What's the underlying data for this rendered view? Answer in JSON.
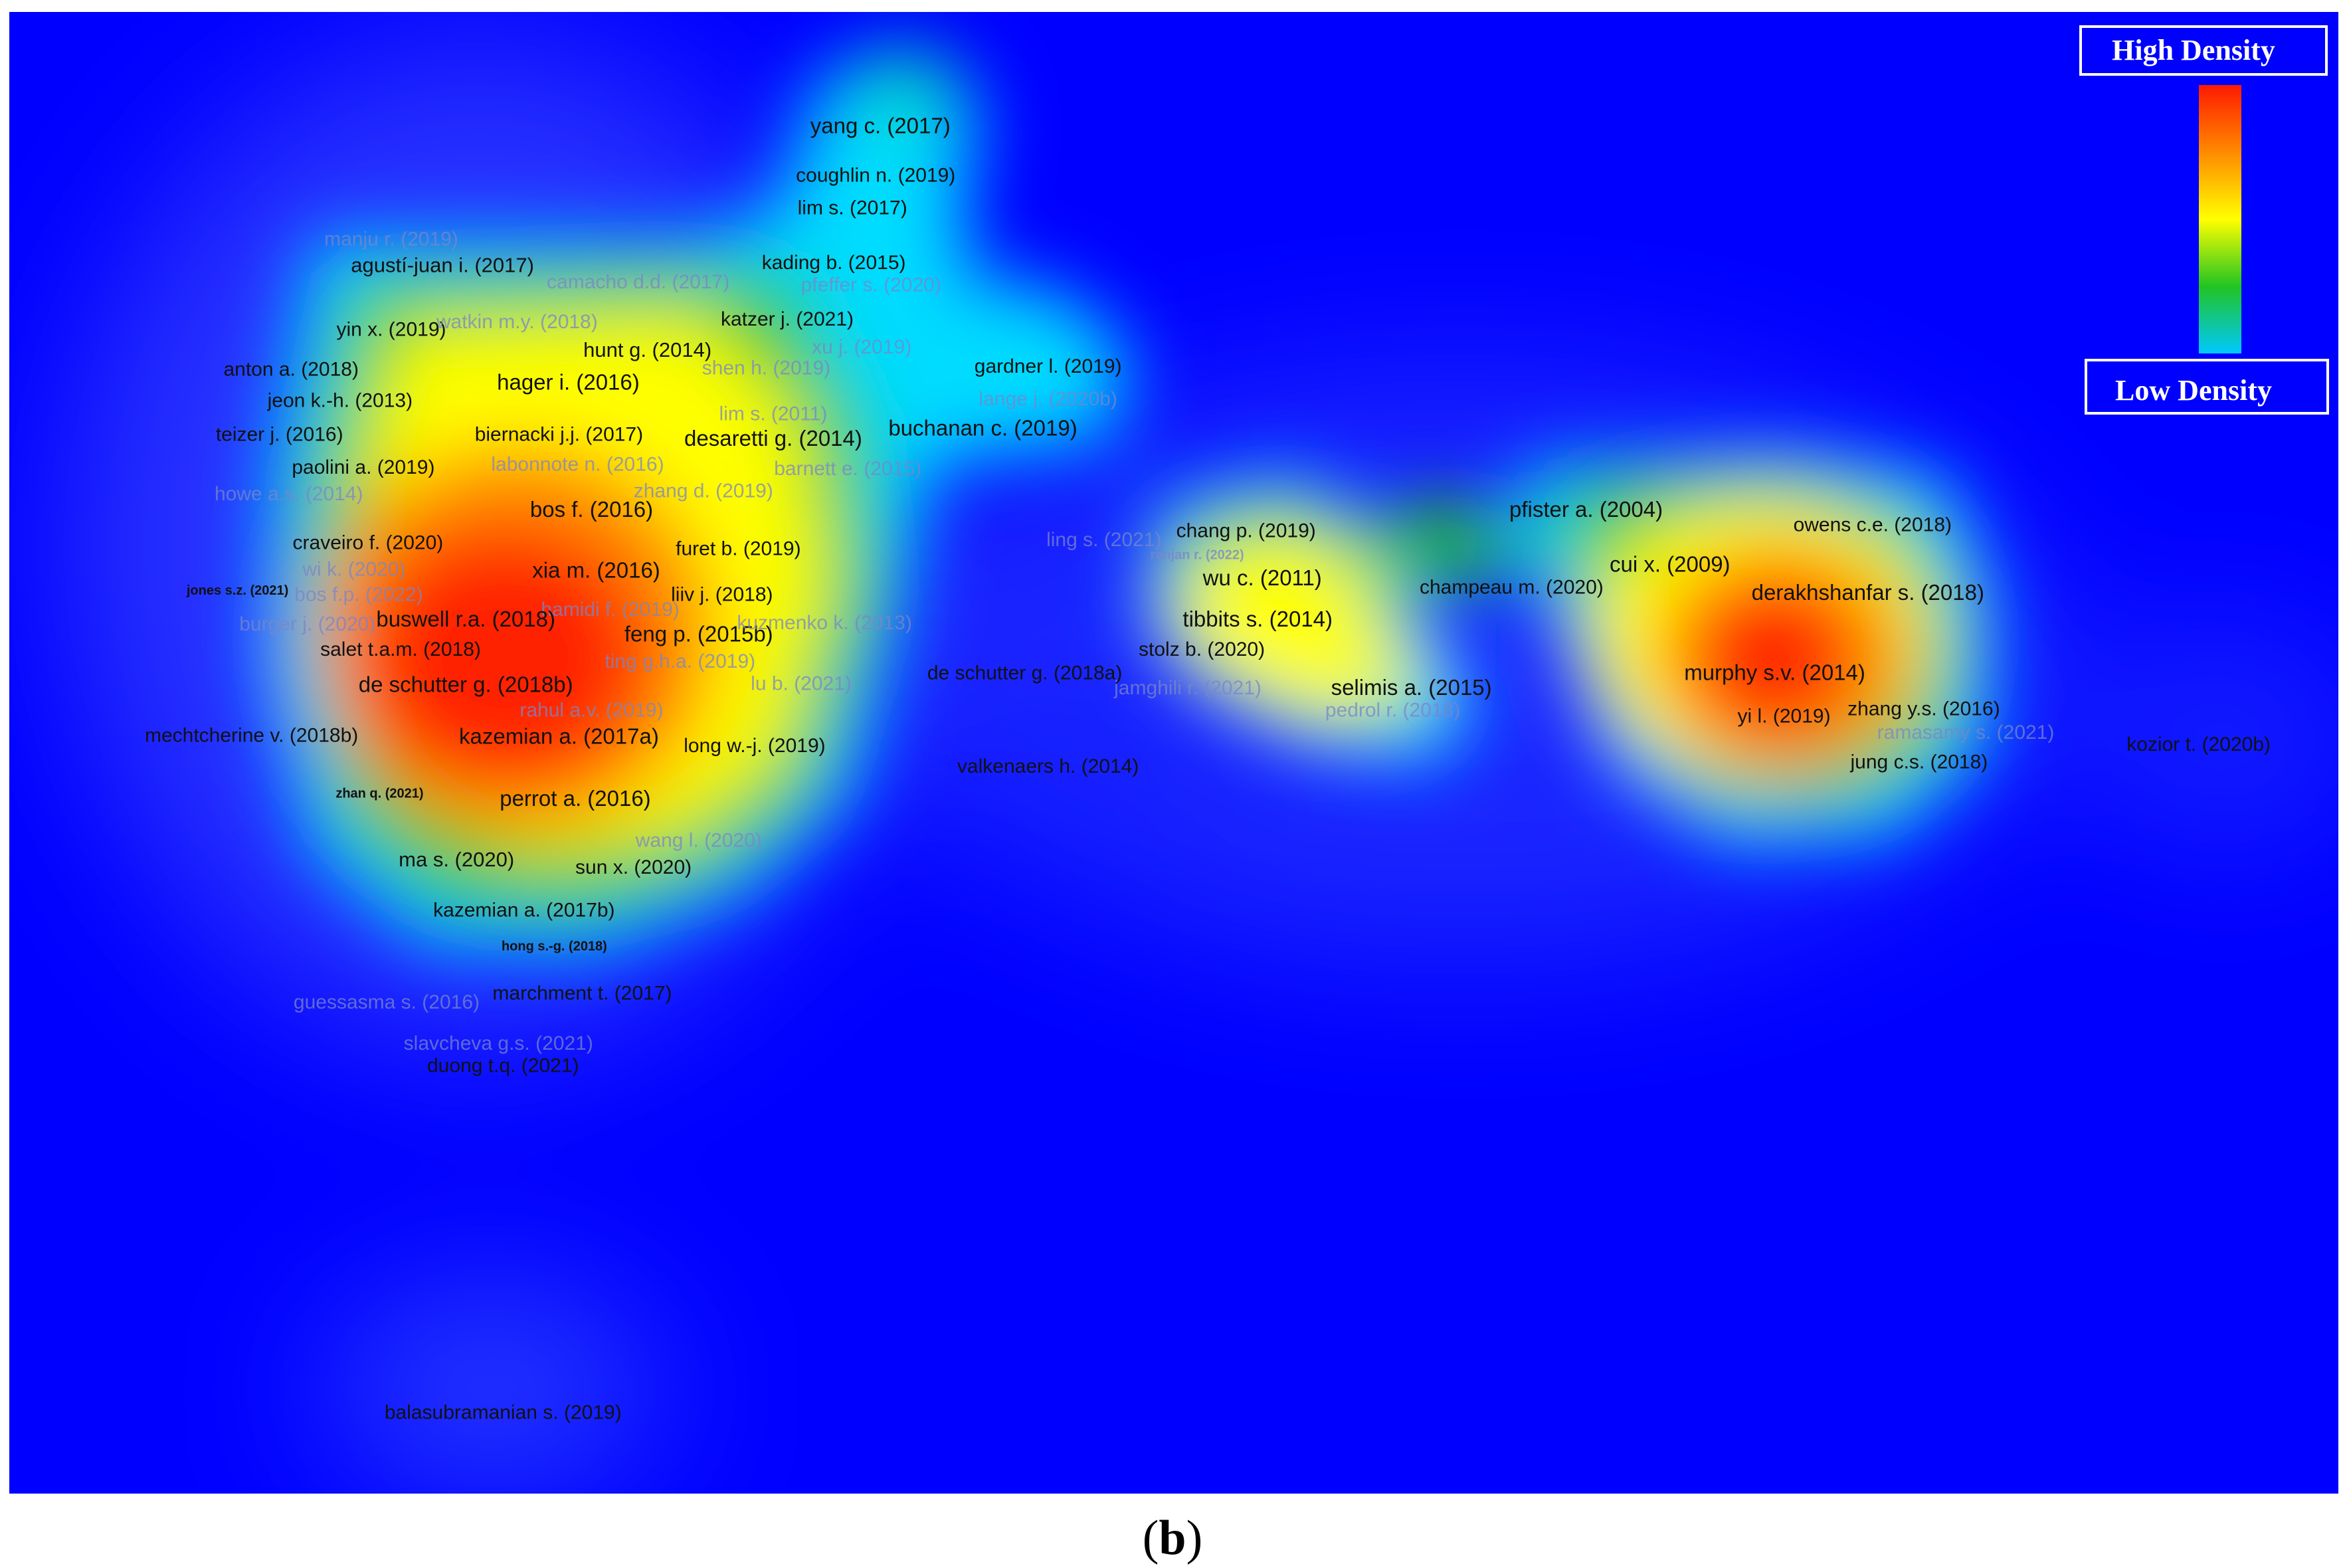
{
  "caption": {
    "open": "(",
    "letter": "b",
    "close": ")"
  },
  "legend": {
    "high_label": "High Density",
    "low_label": "Low Density",
    "colors": [
      "#ff1a00",
      "#ff8a00",
      "#ffff00",
      "#22c422",
      "#00c8ff"
    ]
  },
  "colors": {
    "background": "#0000ff",
    "label_dark": "#111111",
    "label_faint": "#7a86c8"
  },
  "chart_data": {
    "type": "heatmap",
    "title": "",
    "xlabel": "",
    "ylabel": "",
    "xlim": [
      0,
      1000
    ],
    "ylim": [
      0,
      1000
    ],
    "items": [
      {
        "label": "yang c. (2017)",
        "x": 374,
        "y": 78,
        "w": 0.5,
        "faint": false,
        "size": 1.0
      },
      {
        "label": "coughlin n. (2019)",
        "x": 372,
        "y": 111,
        "w": 0.55,
        "faint": false,
        "size": 0.9
      },
      {
        "label": "lim s. (2017)",
        "x": 362,
        "y": 133,
        "w": 0.55,
        "faint": false,
        "size": 0.9
      },
      {
        "label": "manju r. (2019)",
        "x": 164,
        "y": 154,
        "w": 0.25,
        "faint": true,
        "size": 0.9
      },
      {
        "label": "agustí-juan i. (2017)",
        "x": 186,
        "y": 172,
        "w": 0.55,
        "faint": false,
        "size": 0.95
      },
      {
        "label": "camacho d.d. (2017)",
        "x": 270,
        "y": 183,
        "w": 0.6,
        "faint": true,
        "size": 0.9
      },
      {
        "label": "pfeffer s. (2020)",
        "x": 370,
        "y": 185,
        "w": 0.5,
        "faint": true,
        "size": 0.9
      },
      {
        "label": "kading b. (2015)",
        "x": 354,
        "y": 170,
        "w": 0.55,
        "faint": false,
        "size": 0.9
      },
      {
        "label": "katzer j. (2021)",
        "x": 334,
        "y": 208,
        "w": 0.6,
        "faint": false,
        "size": 0.9
      },
      {
        "label": "yin x. (2019)",
        "x": 164,
        "y": 215,
        "w": 0.55,
        "faint": false,
        "size": 0.9
      },
      {
        "label": "watkin m.y. (2018)",
        "x": 218,
        "y": 210,
        "w": 0.6,
        "faint": true,
        "size": 0.9
      },
      {
        "label": "xu j. (2019)",
        "x": 366,
        "y": 227,
        "w": 0.5,
        "faint": true,
        "size": 0.9
      },
      {
        "label": "hunt g. (2014)",
        "x": 274,
        "y": 229,
        "w": 0.7,
        "faint": false,
        "size": 0.95
      },
      {
        "label": "anton a. (2018)",
        "x": 121,
        "y": 242,
        "w": 0.5,
        "faint": false,
        "size": 0.9
      },
      {
        "label": "shen h. (2019)",
        "x": 325,
        "y": 241,
        "w": 0.65,
        "faint": true,
        "size": 0.9
      },
      {
        "label": "gardner l. (2019)",
        "x": 446,
        "y": 240,
        "w": 0.45,
        "faint": false,
        "size": 0.9
      },
      {
        "label": "hager i. (2016)",
        "x": 240,
        "y": 251,
        "w": 0.8,
        "faint": false,
        "size": 1.0
      },
      {
        "label": "jeon k.-h. (2013)",
        "x": 142,
        "y": 263,
        "w": 0.55,
        "faint": false,
        "size": 0.9
      },
      {
        "label": "lange j. (2020b)",
        "x": 446,
        "y": 262,
        "w": 0.4,
        "faint": true,
        "size": 0.9
      },
      {
        "label": "lim s. (2011)",
        "x": 328,
        "y": 272,
        "w": 0.7,
        "faint": true,
        "size": 0.9
      },
      {
        "label": "teizer j. (2016)",
        "x": 116,
        "y": 286,
        "w": 0.55,
        "faint": false,
        "size": 0.9
      },
      {
        "label": "biernacki j.j. (2017)",
        "x": 236,
        "y": 286,
        "w": 0.85,
        "faint": false,
        "size": 0.9
      },
      {
        "label": "desaretti g. (2014)",
        "x": 328,
        "y": 289,
        "w": 0.8,
        "faint": false,
        "size": 1.0
      },
      {
        "label": "buchanan c. (2019)",
        "x": 418,
        "y": 282,
        "w": 0.55,
        "faint": false,
        "size": 1.0
      },
      {
        "label": "paolini a. (2019)",
        "x": 152,
        "y": 308,
        "w": 0.7,
        "faint": false,
        "size": 0.9
      },
      {
        "label": "labonnote n. (2016)",
        "x": 244,
        "y": 306,
        "w": 0.85,
        "faint": true,
        "size": 0.9
      },
      {
        "label": "barnett e. (2015)",
        "x": 360,
        "y": 309,
        "w": 0.6,
        "faint": true,
        "size": 0.9
      },
      {
        "label": "howe a.s. (2014)",
        "x": 120,
        "y": 326,
        "w": 0.5,
        "faint": true,
        "size": 0.9
      },
      {
        "label": "zhang d. (2019)",
        "x": 298,
        "y": 324,
        "w": 0.8,
        "faint": true,
        "size": 0.9
      },
      {
        "label": "bos f. (2016)",
        "x": 250,
        "y": 337,
        "w": 1.0,
        "faint": false,
        "size": 1.0
      },
      {
        "label": "ling s. (2021)",
        "x": 470,
        "y": 357,
        "w": 0.3,
        "faint": true,
        "size": 0.9
      },
      {
        "label": "chang p. (2019)",
        "x": 531,
        "y": 351,
        "w": 0.85,
        "faint": false,
        "size": 0.9
      },
      {
        "label": "ranjan r. (2022)",
        "x": 510,
        "y": 367,
        "w": 0.6,
        "faint": true,
        "size": 0.6
      },
      {
        "label": "pfister a. (2004)",
        "x": 677,
        "y": 337,
        "w": 0.9,
        "faint": false,
        "size": 1.0
      },
      {
        "label": "owens c.e. (2018)",
        "x": 800,
        "y": 347,
        "w": 0.8,
        "faint": false,
        "size": 0.9
      },
      {
        "label": "craveiro f. (2020)",
        "x": 154,
        "y": 359,
        "w": 0.8,
        "faint": false,
        "size": 0.9
      },
      {
        "label": "furet b. (2019)",
        "x": 313,
        "y": 363,
        "w": 0.85,
        "faint": false,
        "size": 0.9
      },
      {
        "label": "xia m. (2016)",
        "x": 252,
        "y": 378,
        "w": 1.0,
        "faint": false,
        "size": 1.0
      },
      {
        "label": "wi k. (2020)",
        "x": 148,
        "y": 377,
        "w": 0.8,
        "faint": true,
        "size": 0.9
      },
      {
        "label": "wu c. (2011)",
        "x": 538,
        "y": 383,
        "w": 0.95,
        "faint": false,
        "size": 1.0
      },
      {
        "label": "cui x. (2009)",
        "x": 713,
        "y": 374,
        "w": 0.95,
        "faint": false,
        "size": 1.0
      },
      {
        "label": "jones s.z. (2021)",
        "x": 98,
        "y": 391,
        "w": 0.35,
        "faint": false,
        "size": 0.6
      },
      {
        "label": "bos f.p. (2022)",
        "x": 150,
        "y": 394,
        "w": 0.8,
        "faint": true,
        "size": 0.9
      },
      {
        "label": "liiv j. (2018)",
        "x": 306,
        "y": 394,
        "w": 0.85,
        "faint": false,
        "size": 0.9
      },
      {
        "label": "champeau m. (2020)",
        "x": 645,
        "y": 389,
        "w": 0.65,
        "faint": false,
        "size": 0.9
      },
      {
        "label": "derakhshanfar s. (2018)",
        "x": 798,
        "y": 393,
        "w": 1.0,
        "faint": false,
        "size": 1.0
      },
      {
        "label": "burger j. (2020)",
        "x": 128,
        "y": 414,
        "w": 0.7,
        "faint": true,
        "size": 0.9
      },
      {
        "label": "hamidi f. (2019)",
        "x": 258,
        "y": 404,
        "w": 0.95,
        "faint": true,
        "size": 0.9
      },
      {
        "label": "buswell r.a. (2018)",
        "x": 196,
        "y": 411,
        "w": 1.0,
        "faint": false,
        "size": 1.0
      },
      {
        "label": "feng p. (2015b)",
        "x": 296,
        "y": 421,
        "w": 0.95,
        "faint": false,
        "size": 1.0
      },
      {
        "label": "kuzmenko k. (2013)",
        "x": 350,
        "y": 413,
        "w": 0.7,
        "faint": true,
        "size": 0.9
      },
      {
        "label": "tibbits s. (2014)",
        "x": 536,
        "y": 411,
        "w": 0.95,
        "faint": false,
        "size": 1.0
      },
      {
        "label": "salet t.a.m. (2018)",
        "x": 168,
        "y": 431,
        "w": 0.9,
        "faint": false,
        "size": 0.9
      },
      {
        "label": "ting g.h.a. (2019)",
        "x": 288,
        "y": 439,
        "w": 0.85,
        "faint": true,
        "size": 0.9
      },
      {
        "label": "stolz b. (2020)",
        "x": 512,
        "y": 431,
        "w": 0.85,
        "faint": false,
        "size": 0.9
      },
      {
        "label": "de schutter g. (2018a)",
        "x": 436,
        "y": 447,
        "w": 0.4,
        "faint": false,
        "size": 0.9
      },
      {
        "label": "de schutter g. (2018b)",
        "x": 196,
        "y": 455,
        "w": 1.0,
        "faint": false,
        "size": 1.0
      },
      {
        "label": "lu b. (2021)",
        "x": 340,
        "y": 454,
        "w": 0.7,
        "faint": true,
        "size": 0.9
      },
      {
        "label": "jamghili r. (2021)",
        "x": 506,
        "y": 457,
        "w": 0.8,
        "faint": true,
        "size": 0.9
      },
      {
        "label": "selimis a. (2015)",
        "x": 602,
        "y": 457,
        "w": 0.95,
        "faint": false,
        "size": 1.0
      },
      {
        "label": "murphy s.v. (2014)",
        "x": 758,
        "y": 447,
        "w": 1.0,
        "faint": false,
        "size": 1.0
      },
      {
        "label": "zhang y.s. (2016)",
        "x": 822,
        "y": 471,
        "w": 0.8,
        "faint": false,
        "size": 0.9
      },
      {
        "label": "yi l. (2019)",
        "x": 762,
        "y": 476,
        "w": 1.0,
        "faint": false,
        "size": 0.9
      },
      {
        "label": "rahul a.v. (2019)",
        "x": 250,
        "y": 472,
        "w": 0.9,
        "faint": true,
        "size": 0.9
      },
      {
        "label": "pedrol r. (2018)",
        "x": 594,
        "y": 472,
        "w": 0.7,
        "faint": true,
        "size": 0.9
      },
      {
        "label": "ramasamy s. (2021)",
        "x": 840,
        "y": 487,
        "w": 0.55,
        "faint": true,
        "size": 0.9
      },
      {
        "label": "mechtcherine v. (2018b)",
        "x": 104,
        "y": 489,
        "w": 0.55,
        "faint": false,
        "size": 0.9
      },
      {
        "label": "kazemian a. (2017a)",
        "x": 236,
        "y": 490,
        "w": 1.0,
        "faint": false,
        "size": 1.0
      },
      {
        "label": "long w.-j. (2019)",
        "x": 320,
        "y": 496,
        "w": 0.75,
        "faint": false,
        "size": 0.9
      },
      {
        "label": "kozior t. (2020b)",
        "x": 940,
        "y": 495,
        "w": 0.3,
        "faint": false,
        "size": 0.9
      },
      {
        "label": "valkenaers h. (2014)",
        "x": 446,
        "y": 510,
        "w": 0.45,
        "faint": false,
        "size": 0.9
      },
      {
        "label": "jung c.s. (2018)",
        "x": 820,
        "y": 507,
        "w": 0.8,
        "faint": false,
        "size": 0.9
      },
      {
        "label": "zhan q. (2021)",
        "x": 159,
        "y": 528,
        "w": 0.7,
        "faint": false,
        "size": 0.6
      },
      {
        "label": "perrot a. (2016)",
        "x": 243,
        "y": 532,
        "w": 1.0,
        "faint": false,
        "size": 1.0
      },
      {
        "label": "wang l. (2020)",
        "x": 296,
        "y": 560,
        "w": 0.7,
        "faint": true,
        "size": 0.9
      },
      {
        "label": "ma s. (2020)",
        "x": 192,
        "y": 573,
        "w": 0.85,
        "faint": false,
        "size": 0.95
      },
      {
        "label": "sun x. (2020)",
        "x": 268,
        "y": 578,
        "w": 0.85,
        "faint": false,
        "size": 0.9
      },
      {
        "label": "kazemian a. (2017b)",
        "x": 221,
        "y": 607,
        "w": 0.75,
        "faint": false,
        "size": 0.9
      },
      {
        "label": "hong s.-g. (2018)",
        "x": 234,
        "y": 631,
        "w": 0.45,
        "faint": false,
        "size": 0.6
      },
      {
        "label": "guessasma s. (2016)",
        "x": 162,
        "y": 669,
        "w": 0.3,
        "faint": true,
        "size": 0.9
      },
      {
        "label": "marchment t. (2017)",
        "x": 246,
        "y": 663,
        "w": 0.4,
        "faint": false,
        "size": 0.9
      },
      {
        "label": "slavcheva g.s. (2021)",
        "x": 210,
        "y": 697,
        "w": 0.3,
        "faint": true,
        "size": 0.9
      },
      {
        "label": "duong t.q. (2021)",
        "x": 212,
        "y": 712,
        "w": 0.3,
        "faint": false,
        "size": 0.9
      },
      {
        "label": "balasubramanian s. (2019)",
        "x": 212,
        "y": 946,
        "w": 0.2,
        "faint": false,
        "size": 0.9
      }
    ]
  }
}
